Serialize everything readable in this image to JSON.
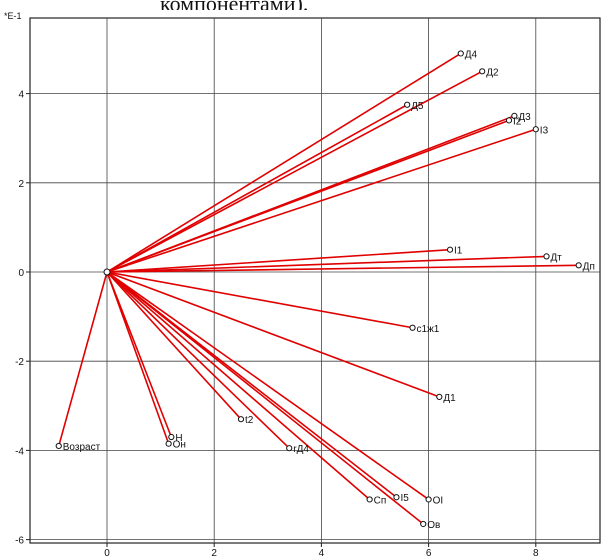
{
  "caption": "компонентами).",
  "chart_data": {
    "type": "scatter",
    "exponent_label": "*E-1",
    "origin": [
      0,
      0
    ],
    "xlim": [
      -1.5,
      9.0
    ],
    "ylim": [
      -6.0,
      5.3
    ],
    "x_ticks": [
      {
        "value": 0,
        "label": "0"
      },
      {
        "value": 2,
        "label": "2"
      },
      {
        "value": 4,
        "label": "4"
      },
      {
        "value": 6,
        "label": "6"
      },
      {
        "value": 8,
        "label": "8"
      }
    ],
    "y_ticks": [
      {
        "value": 4,
        "label": "4"
      },
      {
        "value": 2,
        "label": "2"
      },
      {
        "value": 0,
        "label": "0"
      },
      {
        "value": -2,
        "label": "-2"
      },
      {
        "value": -4,
        "label": "-4"
      },
      {
        "value": -6,
        "label": "-6"
      }
    ],
    "grid": true,
    "line_color": "#e00000",
    "points": [
      {
        "label": "Д4",
        "x": 6.6,
        "y": 4.9
      },
      {
        "label": "Д2",
        "x": 7.0,
        "y": 4.5
      },
      {
        "label": "Д5",
        "x": 5.6,
        "y": 3.75
      },
      {
        "label": "Д3",
        "x": 7.6,
        "y": 3.5
      },
      {
        "label": "I2",
        "x": 7.5,
        "y": 3.4
      },
      {
        "label": "I3",
        "x": 8.0,
        "y": 3.2
      },
      {
        "label": "I1",
        "x": 6.4,
        "y": 0.5
      },
      {
        "label": "Дт",
        "x": 8.2,
        "y": 0.35
      },
      {
        "label": "Дп",
        "x": 8.8,
        "y": 0.15
      },
      {
        "label": "c1ж1",
        "x": 5.7,
        "y": -1.25
      },
      {
        "label": "Д1",
        "x": 6.2,
        "y": -2.8
      },
      {
        "label": "Возраст",
        "x": -0.9,
        "y": -3.9
      },
      {
        "label": "H",
        "x": 1.2,
        "y": -3.7
      },
      {
        "label": "Он",
        "x": 1.15,
        "y": -3.85
      },
      {
        "label": "t2",
        "x": 2.5,
        "y": -3.3
      },
      {
        "label": "rД4",
        "x": 3.4,
        "y": -3.95
      },
      {
        "label": "Сп",
        "x": 4.9,
        "y": -5.1
      },
      {
        "label": "I5",
        "x": 5.4,
        "y": -5.05
      },
      {
        "label": "OI",
        "x": 6.0,
        "y": -5.1
      },
      {
        "label": "Ов",
        "x": 5.9,
        "y": -5.65
      }
    ]
  }
}
